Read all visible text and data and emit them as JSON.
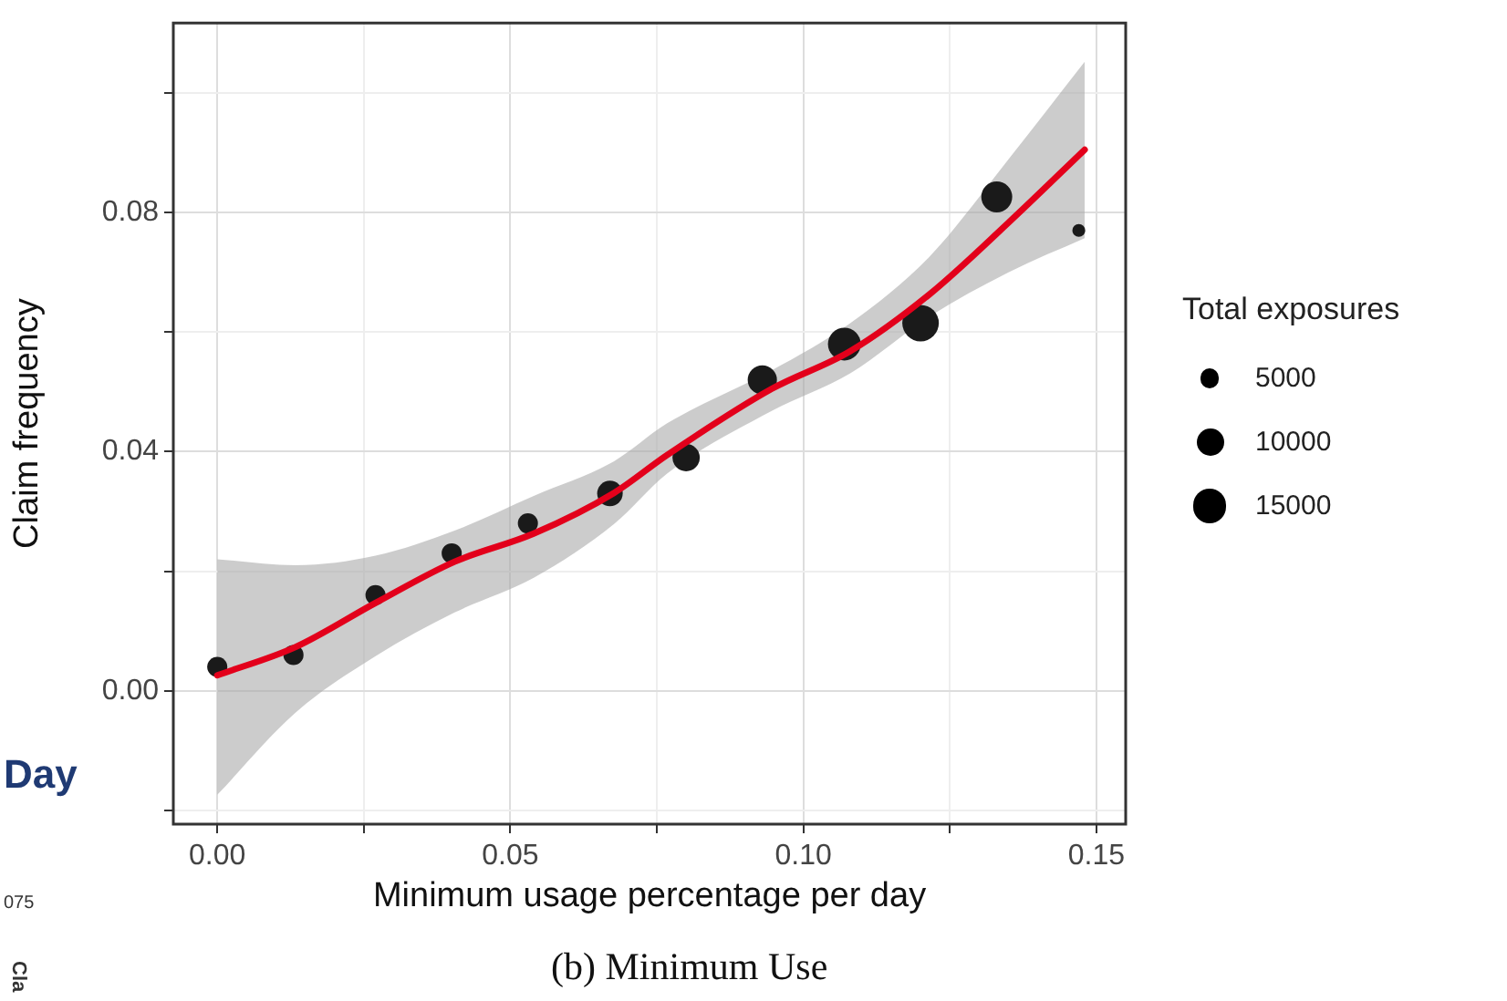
{
  "chart_data": {
    "type": "bubble",
    "xlabel": "Minimum usage percentage per day",
    "ylabel": "Claim frequency",
    "legend_title": "Total exposures",
    "size_legend": [
      5000,
      10000,
      15000
    ],
    "grid": true,
    "xlim": [
      -0.0075,
      0.155
    ],
    "ylim": [
      -0.0223,
      0.1117
    ],
    "xticks": [
      {
        "value": 0,
        "label": "0.00"
      },
      {
        "value": 0.025,
        "label": null
      },
      {
        "value": 0.05,
        "label": "0.05"
      },
      {
        "value": 0.075,
        "label": null
      },
      {
        "value": 0.1,
        "label": "0.10"
      },
      {
        "value": 0.125,
        "label": null
      },
      {
        "value": 0.15,
        "label": "0.15"
      }
    ],
    "yticks": [
      {
        "value": -0.02,
        "label": null
      },
      {
        "value": 0,
        "label": "0.00"
      },
      {
        "value": 0.02,
        "label": null
      },
      {
        "value": 0.04,
        "label": "0.04"
      },
      {
        "value": 0.06,
        "label": null
      },
      {
        "value": 0.08,
        "label": "0.08"
      },
      {
        "value": 0.1,
        "label": null
      }
    ],
    "series": [
      {
        "type": "bubble",
        "color": "#1a1a1a",
        "x": [
          0,
          0.013,
          0.027,
          0.04,
          0.053,
          0.067,
          0.08,
          0.093,
          0.107,
          0.12,
          0.133,
          0.147
        ],
        "values": [
          0.004,
          0.006,
          0.016,
          0.023,
          0.028,
          0.033,
          0.039,
          0.052,
          0.058,
          0.0615,
          0.0826,
          0.077
        ],
        "sizes": [
          5400,
          5400,
          5400,
          5400,
          5400,
          8700,
          10000,
          11400,
          14400,
          17800,
          12800,
          2200
        ]
      },
      {
        "type": "line",
        "color": "#e3001b",
        "x": [
          0,
          0.0133,
          0.027,
          0.0405,
          0.054,
          0.0677,
          0.0767,
          0.0946,
          0.108,
          0.1215,
          0.135,
          0.148
        ],
        "values": [
          0.0026,
          0.0073,
          0.0147,
          0.0216,
          0.0263,
          0.0331,
          0.0394,
          0.0505,
          0.0568,
          0.0663,
          0.0783,
          0.0905
        ],
        "lower": [
          -0.0174,
          -0.0037,
          0.0058,
          0.0131,
          0.0189,
          0.0279,
          0.0363,
          0.0468,
          0.0531,
          0.0626,
          0.07,
          0.0757
        ],
        "upper": [
          0.022,
          0.021,
          0.0226,
          0.0268,
          0.0326,
          0.0384,
          0.0447,
          0.0536,
          0.0615,
          0.0726,
          0.0889,
          0.1052
        ]
      }
    ],
    "annotations": [
      "(b) Minimum Use",
      "Day",
      "075",
      "Cla"
    ]
  }
}
